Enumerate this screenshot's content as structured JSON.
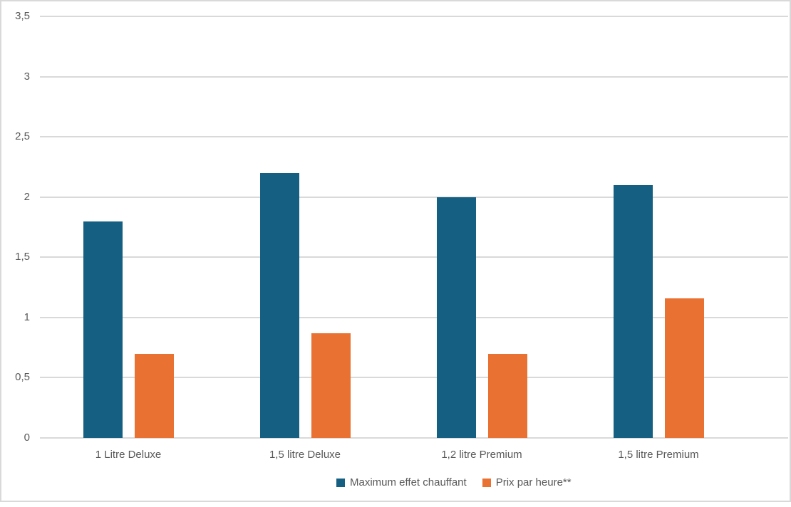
{
  "chart_data": {
    "type": "bar",
    "title": "",
    "xlabel": "",
    "ylabel": "",
    "categories": [
      "1 Litre Deluxe",
      "1,5 litre Deluxe",
      "1,2 litre Premium",
      "1,5 litre Premium"
    ],
    "series": [
      {
        "name": "Maximum effet chauffant",
        "color": "#156082",
        "values": [
          1.8,
          2.2,
          2.0,
          2.1
        ]
      },
      {
        "name": "Prix par heure**",
        "color": "#E97132",
        "values": [
          0.7,
          0.87,
          0.7,
          1.16
        ]
      }
    ],
    "ylim": [
      0,
      3.5
    ],
    "y_ticks": [
      {
        "value": 0,
        "label": "0"
      },
      {
        "value": 0.5,
        "label": "0,5"
      },
      {
        "value": 1,
        "label": "1"
      },
      {
        "value": 1.5,
        "label": "1,5"
      },
      {
        "value": 2,
        "label": "2"
      },
      {
        "value": 2.5,
        "label": "2,5"
      },
      {
        "value": 3,
        "label": "3"
      },
      {
        "value": 3.5,
        "label": "3,5"
      }
    ],
    "grid": "horizontal",
    "legend_position": "bottom",
    "decimal_separator": ","
  },
  "style": {
    "grid_color": "#d9d9d9",
    "axis_text_color": "#595959",
    "border_color": "#d9d9d9",
    "background": "#ffffff"
  }
}
